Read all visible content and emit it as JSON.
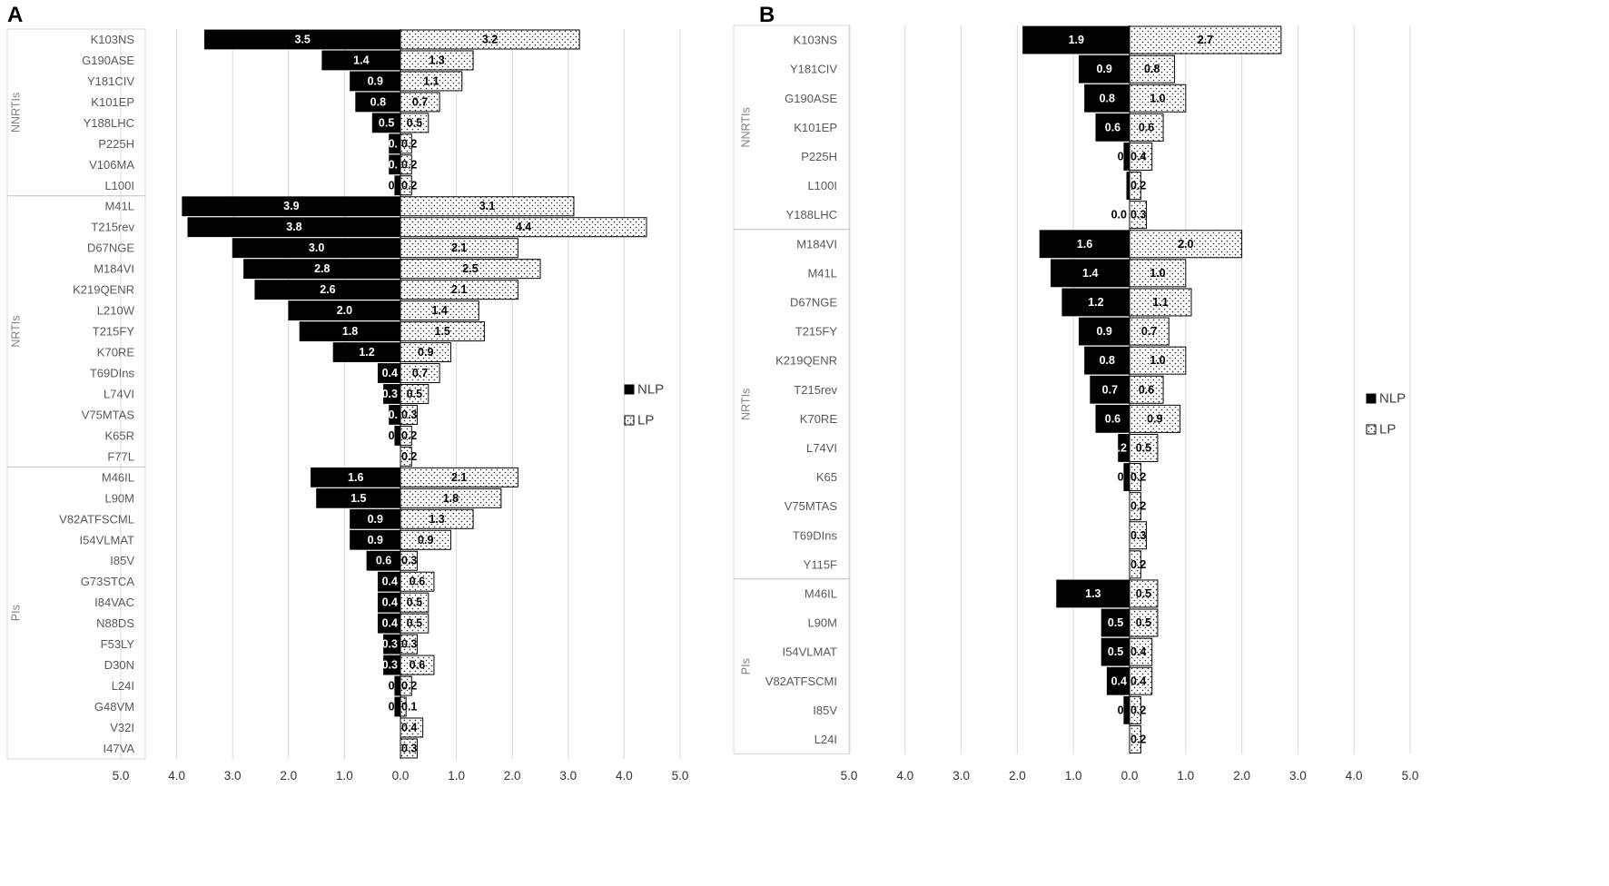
{
  "chart_data": [
    {
      "panel_label": "A",
      "type": "bar",
      "orientation": "horizontal-diverging",
      "xlim": [
        -5,
        5
      ],
      "x_ticks": [
        "5.0",
        "4.0",
        "3.0",
        "2.0",
        "1.0",
        "0.0",
        "1.0",
        "2.0",
        "3.0",
        "4.0",
        "5.0"
      ],
      "legend": {
        "placement": "right",
        "entries": [
          "NLP",
          "LP"
        ]
      },
      "grid": true,
      "series": [
        {
          "name": "NLP",
          "color": "#000000",
          "direction": "left"
        },
        {
          "name": "LP",
          "color": "#ffffff",
          "pattern": "dotted",
          "direction": "right"
        }
      ],
      "groups": [
        {
          "name": "NNRTIs",
          "rows": [
            {
              "label": "K103NS",
              "NLP": 3.5,
              "LP": 3.2,
              "NLP_label": "3.5",
              "LP_label": "3.2"
            },
            {
              "label": "G190ASE",
              "NLP": 1.4,
              "LP": 1.3,
              "NLP_label": "1.4",
              "LP_label": "1.3"
            },
            {
              "label": "Y181CIV",
              "NLP": 0.9,
              "LP": 1.1,
              "NLP_label": "0.9",
              "LP_label": "1.1"
            },
            {
              "label": "K101EP",
              "NLP": 0.8,
              "LP": 0.7,
              "NLP_label": "0.8",
              "LP_label": "0.7"
            },
            {
              "label": "Y188LHC",
              "NLP": 0.5,
              "LP": 0.5,
              "NLP_label": "0.5",
              "LP_label": "0.5"
            },
            {
              "label": "P225H",
              "NLP": 0.2,
              "LP": 0.2,
              "NLP_label": "0.",
              "LP_label": "0.2"
            },
            {
              "label": "V106MA",
              "NLP": 0.2,
              "LP": 0.2,
              "NLP_label": "0.",
              "LP_label": "0.2"
            },
            {
              "label": "L100I",
              "NLP": 0.1,
              "LP": 0.2,
              "NLP_label": "0.",
              "LP_label": "0.2"
            }
          ]
        },
        {
          "name": "NRTIs",
          "rows": [
            {
              "label": "M41L",
              "NLP": 3.9,
              "LP": 3.1,
              "NLP_label": "3.9",
              "LP_label": "3.1"
            },
            {
              "label": "T215rev",
              "NLP": 3.8,
              "LP": 4.4,
              "NLP_label": "3.8",
              "LP_label": "4.4"
            },
            {
              "label": "D67NGE",
              "NLP": 3.0,
              "LP": 2.1,
              "NLP_label": "3.0",
              "LP_label": "2.1"
            },
            {
              "label": "M184VI",
              "NLP": 2.8,
              "LP": 2.5,
              "NLP_label": "2.8",
              "LP_label": "2.5"
            },
            {
              "label": "K219QENR",
              "NLP": 2.6,
              "LP": 2.1,
              "NLP_label": "2.6",
              "LP_label": "2.1"
            },
            {
              "label": "L210W",
              "NLP": 2.0,
              "LP": 1.4,
              "NLP_label": "2.0",
              "LP_label": "1.4"
            },
            {
              "label": "T215FY",
              "NLP": 1.8,
              "LP": 1.5,
              "NLP_label": "1.8",
              "LP_label": "1.5"
            },
            {
              "label": "K70RE",
              "NLP": 1.2,
              "LP": 0.9,
              "NLP_label": "1.2",
              "LP_label": "0.9"
            },
            {
              "label": "T69DIns",
              "NLP": 0.4,
              "LP": 0.7,
              "NLP_label": "0.4",
              "LP_label": "0.7"
            },
            {
              "label": "L74VI",
              "NLP": 0.3,
              "LP": 0.5,
              "NLP_label": "0.3",
              "LP_label": "0.5"
            },
            {
              "label": "V75MTAS",
              "NLP": 0.2,
              "LP": 0.3,
              "NLP_label": "0.",
              "LP_label": "0.3"
            },
            {
              "label": "K65R",
              "NLP": 0.1,
              "LP": 0.2,
              "NLP_label": "0.",
              "LP_label": "0.2"
            },
            {
              "label": "F77L",
              "NLP": 0.0,
              "LP": 0.2,
              "NLP_label": "",
              "LP_label": "0.2"
            }
          ]
        },
        {
          "name": "PIs",
          "rows": [
            {
              "label": "M46IL",
              "NLP": 1.6,
              "LP": 2.1,
              "NLP_label": "1.6",
              "LP_label": "2.1"
            },
            {
              "label": "L90M",
              "NLP": 1.5,
              "LP": 1.8,
              "NLP_label": "1.5",
              "LP_label": "1.8"
            },
            {
              "label": "V82ATFSCML",
              "NLP": 0.9,
              "LP": 1.3,
              "NLP_label": "0.9",
              "LP_label": "1.3"
            },
            {
              "label": "I54VLMAT",
              "NLP": 0.9,
              "LP": 0.9,
              "NLP_label": "0.9",
              "LP_label": "0.9"
            },
            {
              "label": "I85V",
              "NLP": 0.6,
              "LP": 0.3,
              "NLP_label": "0.6",
              "LP_label": "0.3"
            },
            {
              "label": "G73STCA",
              "NLP": 0.4,
              "LP": 0.6,
              "NLP_label": "0.4",
              "LP_label": "0.6"
            },
            {
              "label": "I84VAC",
              "NLP": 0.4,
              "LP": 0.5,
              "NLP_label": "0.4",
              "LP_label": "0.5"
            },
            {
              "label": "N88DS",
              "NLP": 0.4,
              "LP": 0.5,
              "NLP_label": "0.4",
              "LP_label": "0.5"
            },
            {
              "label": "F53LY",
              "NLP": 0.3,
              "LP": 0.3,
              "NLP_label": "0.3",
              "LP_label": "0.3"
            },
            {
              "label": "D30N",
              "NLP": 0.3,
              "LP": 0.6,
              "NLP_label": "0.3",
              "LP_label": "0.6"
            },
            {
              "label": "L24I",
              "NLP": 0.1,
              "LP": 0.2,
              "NLP_label": "0.",
              "LP_label": "0.2"
            },
            {
              "label": "G48VM",
              "NLP": 0.1,
              "LP": 0.1,
              "NLP_label": "0.",
              "LP_label": "0.1"
            },
            {
              "label": "V32I",
              "NLP": 0.0,
              "LP": 0.4,
              "NLP_label": "",
              "LP_label": "0.4"
            },
            {
              "label": "I47VA",
              "NLP": 0.0,
              "LP": 0.3,
              "NLP_label": "",
              "LP_label": "0.3"
            }
          ]
        }
      ]
    },
    {
      "panel_label": "B",
      "type": "bar",
      "orientation": "horizontal-diverging",
      "xlim": [
        -5,
        5
      ],
      "x_ticks": [
        "5.0",
        "4.0",
        "3.0",
        "2.0",
        "1.0",
        "0.0",
        "1.0",
        "2.0",
        "3.0",
        "4.0",
        "5.0"
      ],
      "legend": {
        "placement": "right",
        "entries": [
          "NLP",
          "LP"
        ]
      },
      "grid": true,
      "series": [
        {
          "name": "NLP",
          "color": "#000000",
          "direction": "left"
        },
        {
          "name": "LP",
          "color": "#ffffff",
          "pattern": "dotted",
          "direction": "right"
        }
      ],
      "groups": [
        {
          "name": "NNRTIs",
          "rows": [
            {
              "label": "K103NS",
              "NLP": 1.9,
              "LP": 2.7,
              "NLP_label": "1.9",
              "LP_label": "2.7"
            },
            {
              "label": "Y181CIV",
              "NLP": 0.9,
              "LP": 0.8,
              "NLP_label": "0.9",
              "LP_label": "0.8"
            },
            {
              "label": "G190ASE",
              "NLP": 0.8,
              "LP": 1.0,
              "NLP_label": "0.8",
              "LP_label": "1.0"
            },
            {
              "label": "K101EP",
              "NLP": 0.6,
              "LP": 0.6,
              "NLP_label": "0.6",
              "LP_label": "0.6"
            },
            {
              "label": "P225H",
              "NLP": 0.1,
              "LP": 0.4,
              "NLP_label": "0.",
              "LP_label": "0.4"
            },
            {
              "label": "L100I",
              "NLP": 0.05,
              "LP": 0.2,
              "NLP_label": "",
              "LP_label": "0.2"
            },
            {
              "label": "Y188LHC",
              "NLP": 0.0,
              "LP": 0.3,
              "NLP_label": "0.0",
              "LP_label": "0.3"
            }
          ]
        },
        {
          "name": "NRTIs",
          "rows": [
            {
              "label": "M184VI",
              "NLP": 1.6,
              "LP": 2.0,
              "NLP_label": "1.6",
              "LP_label": "2.0"
            },
            {
              "label": "M41L",
              "NLP": 1.4,
              "LP": 1.0,
              "NLP_label": "1.4",
              "LP_label": "1.0"
            },
            {
              "label": "D67NGE",
              "NLP": 1.2,
              "LP": 1.1,
              "NLP_label": "1.2",
              "LP_label": "1.1"
            },
            {
              "label": "T215FY",
              "NLP": 0.9,
              "LP": 0.7,
              "NLP_label": "0.9",
              "LP_label": "0.7"
            },
            {
              "label": "K219QENR",
              "NLP": 0.8,
              "LP": 1.0,
              "NLP_label": "0.8",
              "LP_label": "1.0"
            },
            {
              "label": "T215rev",
              "NLP": 0.7,
              "LP": 0.6,
              "NLP_label": "0.7",
              "LP_label": "0.6"
            },
            {
              "label": "K70RE",
              "NLP": 0.6,
              "LP": 0.9,
              "NLP_label": "0.6",
              "LP_label": "0.9"
            },
            {
              "label": "L74VI",
              "NLP": 0.2,
              "LP": 0.5,
              "NLP_label": "0.2",
              "LP_label": "0.5"
            },
            {
              "label": "K65",
              "NLP": 0.1,
              "LP": 0.2,
              "NLP_label": "0.",
              "LP_label": "0.2"
            },
            {
              "label": "V75MTAS",
              "NLP": 0.0,
              "LP": 0.2,
              "NLP_label": "",
              "LP_label": "0.2"
            },
            {
              "label": "T69DIns",
              "NLP": 0.0,
              "LP": 0.3,
              "NLP_label": "",
              "LP_label": "0.3"
            },
            {
              "label": "Y115F",
              "NLP": 0.0,
              "LP": 0.2,
              "NLP_label": "",
              "LP_label": "0.2"
            }
          ]
        },
        {
          "name": "PIs",
          "rows": [
            {
              "label": "M46IL",
              "NLP": 1.3,
              "LP": 0.5,
              "NLP_label": "1.3",
              "LP_label": "0.5"
            },
            {
              "label": "L90M",
              "NLP": 0.5,
              "LP": 0.5,
              "NLP_label": "0.5",
              "LP_label": "0.5"
            },
            {
              "label": "I54VLMAT",
              "NLP": 0.5,
              "LP": 0.4,
              "NLP_label": "0.5",
              "LP_label": "0.4"
            },
            {
              "label": "V82ATFSCMI",
              "NLP": 0.4,
              "LP": 0.4,
              "NLP_label": "0.4",
              "LP_label": "0.4"
            },
            {
              "label": "I85V",
              "NLP": 0.1,
              "LP": 0.2,
              "NLP_label": "0.",
              "LP_label": "0.2"
            },
            {
              "label": "L24I",
              "NLP": 0.0,
              "LP": 0.2,
              "NLP_label": "",
              "LP_label": "0.2"
            }
          ]
        }
      ]
    }
  ]
}
